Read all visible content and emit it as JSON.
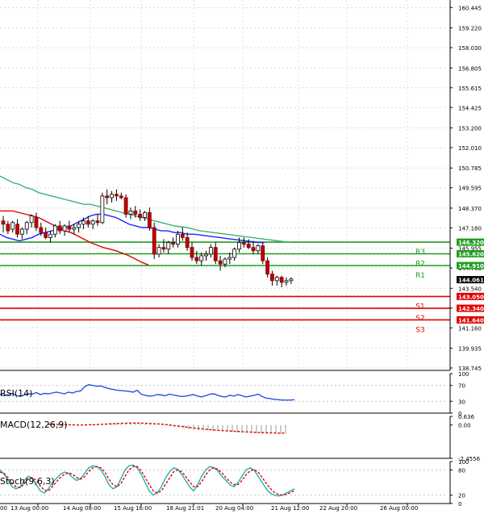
{
  "chart_data": [
    {
      "type": "candlestick",
      "x_labels": [
        "13 Aug 00:00",
        "14 Aug 08:00",
        "15 Aug 16:00",
        "18 Aug 21:01",
        "20 Aug 04:00",
        "21 Aug 12:00",
        "22 Aug 20:00",
        "26 Aug 00:00"
      ],
      "x_label_partial": "00",
      "y_ticks": [
        "160.445",
        "159.220",
        "158.030",
        "156.805",
        "155.615",
        "154.425",
        "153.200",
        "152.010",
        "150.785",
        "149.595",
        "148.370",
        "147.180",
        "145.955",
        "144.765",
        "143.540",
        "142.350",
        "141.160",
        "139.935",
        "138.745"
      ],
      "price_tags": [
        {
          "value": 146.32,
          "label": "146.320",
          "color": "#1e9e1e"
        },
        {
          "value": 145.62,
          "label": "145.620",
          "color": "#1e9e1e"
        },
        {
          "value": 144.91,
          "label": "144.910",
          "color": "#1e9e1e"
        },
        {
          "value": 144.061,
          "label": "144.061",
          "color": "#000000"
        },
        {
          "value": 143.05,
          "label": "143.050",
          "color": "#e00000"
        },
        {
          "value": 142.34,
          "label": "142.340",
          "color": "#e00000"
        },
        {
          "value": 141.64,
          "label": "141.640",
          "color": "#e00000"
        }
      ],
      "levels": [
        {
          "name": "R3",
          "value": 146.32,
          "color": "#1e9e1e"
        },
        {
          "name": "R2",
          "value": 145.62,
          "color": "#1e9e1e"
        },
        {
          "name": "R1",
          "value": 144.91,
          "color": "#1e9e1e"
        },
        {
          "name": "S1",
          "value": 143.05,
          "color": "#e00000"
        },
        {
          "name": "S2",
          "value": 142.34,
          "color": "#e00000"
        },
        {
          "name": "S3",
          "value": 141.64,
          "color": "#e00000"
        }
      ],
      "ylim": [
        138.6,
        160.9
      ],
      "grid": true,
      "candles": [
        [
          147.6,
          147.9,
          146.9,
          147.4
        ],
        [
          147.4,
          147.6,
          146.8,
          147.0
        ],
        [
          147.1,
          147.6,
          146.9,
          147.5
        ],
        [
          147.4,
          147.7,
          146.6,
          146.8
        ],
        [
          146.8,
          147.2,
          146.5,
          147.1
        ],
        [
          147.1,
          147.6,
          146.8,
          147.5
        ],
        [
          147.5,
          148.0,
          147.2,
          147.9
        ],
        [
          147.8,
          148.1,
          147.0,
          147.2
        ],
        [
          147.2,
          147.5,
          146.7,
          146.9
        ],
        [
          146.9,
          147.2,
          146.5,
          146.6
        ],
        [
          146.6,
          147.0,
          146.3,
          146.8
        ],
        [
          146.8,
          147.4,
          146.6,
          147.3
        ],
        [
          147.3,
          147.6,
          146.8,
          147.0
        ],
        [
          147.0,
          147.4,
          146.7,
          147.3
        ],
        [
          147.3,
          147.6,
          146.9,
          147.1
        ],
        [
          147.1,
          147.4,
          146.8,
          147.2
        ],
        [
          147.2,
          147.6,
          146.9,
          147.4
        ],
        [
          147.4,
          147.8,
          147.1,
          147.6
        ],
        [
          147.6,
          147.9,
          147.2,
          147.4
        ],
        [
          147.4,
          147.7,
          147.1,
          147.6
        ],
        [
          147.6,
          148.0,
          147.3,
          147.5
        ],
        [
          147.5,
          149.3,
          147.4,
          149.1
        ],
        [
          149.1,
          149.5,
          148.6,
          149.0
        ],
        [
          149.0,
          149.4,
          148.7,
          149.2
        ],
        [
          149.2,
          149.5,
          148.8,
          149.1
        ],
        [
          149.1,
          149.3,
          148.9,
          149.0
        ],
        [
          149.0,
          149.2,
          147.8,
          148.0
        ],
        [
          148.0,
          148.4,
          147.7,
          148.2
        ],
        [
          148.2,
          148.5,
          147.8,
          148.0
        ],
        [
          148.0,
          148.3,
          147.6,
          147.8
        ],
        [
          147.8,
          148.2,
          147.6,
          148.1
        ],
        [
          148.1,
          148.4,
          147.0,
          147.2
        ],
        [
          147.2,
          147.5,
          145.3,
          145.6
        ],
        [
          145.6,
          146.2,
          145.4,
          146.0
        ],
        [
          146.0,
          146.5,
          145.7,
          145.9
        ],
        [
          145.9,
          146.4,
          145.6,
          146.3
        ],
        [
          146.3,
          146.6,
          146.0,
          146.2
        ],
        [
          146.2,
          147.0,
          146.0,
          146.8
        ],
        [
          146.8,
          147.2,
          146.4,
          146.6
        ],
        [
          146.6,
          146.9,
          145.8,
          146.0
        ],
        [
          146.0,
          146.3,
          145.2,
          145.4
        ],
        [
          145.4,
          145.8,
          145.0,
          145.2
        ],
        [
          145.2,
          145.7,
          144.9,
          145.5
        ],
        [
          145.5,
          145.8,
          145.2,
          145.6
        ],
        [
          145.6,
          146.2,
          145.4,
          146.0
        ],
        [
          146.0,
          146.3,
          145.0,
          145.2
        ],
        [
          145.2,
          145.5,
          144.6,
          145.0
        ],
        [
          145.0,
          145.4,
          144.8,
          145.3
        ],
        [
          145.3,
          145.7,
          145.0,
          145.4
        ],
        [
          145.4,
          146.0,
          145.2,
          145.9
        ],
        [
          145.9,
          146.6,
          145.7,
          146.3
        ],
        [
          146.3,
          146.6,
          146.0,
          146.2
        ],
        [
          146.2,
          146.5,
          145.9,
          146.0
        ],
        [
          146.0,
          146.4,
          145.6,
          145.8
        ],
        [
          145.8,
          146.2,
          145.6,
          146.1
        ],
        [
          146.1,
          146.3,
          145.0,
          145.2
        ],
        [
          145.2,
          145.4,
          144.2,
          144.4
        ],
        [
          144.4,
          144.6,
          143.7,
          144.0
        ],
        [
          144.0,
          144.3,
          143.7,
          144.2
        ],
        [
          144.2,
          144.3,
          143.6,
          143.9
        ],
        [
          143.9,
          144.2,
          143.7,
          144.0
        ],
        [
          144.0,
          144.2,
          143.8,
          144.1
        ]
      ],
      "series": [
        {
          "color": "#3cb371",
          "values": [
            150.3,
            150.1,
            149.9,
            149.8,
            149.6,
            149.5,
            149.3,
            149.2,
            149.1,
            149.0,
            148.9,
            148.8,
            148.7,
            148.6,
            148.6,
            148.5,
            148.4,
            148.3,
            148.2,
            148.1,
            148.0,
            147.9,
            147.8,
            147.7,
            147.6,
            147.5,
            147.4,
            147.3,
            147.25,
            147.2,
            147.1,
            147.0,
            146.95,
            146.9,
            146.85,
            146.8,
            146.75,
            146.7,
            146.65,
            146.6,
            146.55,
            146.5,
            146.45,
            146.4,
            146.35,
            146.32
          ]
        },
        {
          "color": "#e00000",
          "values": [
            148.2,
            148.2,
            148.2,
            148.1,
            148.0,
            147.9,
            147.8,
            147.6,
            147.4,
            147.2,
            147.0,
            146.9,
            146.7,
            146.5,
            146.3,
            146.15,
            146.0,
            145.9,
            145.8,
            145.65,
            145.5,
            145.3,
            145.1,
            144.95
          ]
        },
        {
          "color": "#2222ff",
          "values": [
            146.8,
            146.6,
            146.5,
            146.4,
            146.5,
            146.6,
            146.8,
            146.9,
            147.0,
            147.1,
            147.2,
            147.3,
            147.5,
            147.7,
            147.9,
            148.0,
            148.0,
            147.9,
            147.8,
            147.6,
            147.4,
            147.3,
            147.2,
            147.2,
            147.1,
            147.0,
            147.0,
            146.9,
            146.9,
            146.8,
            146.8,
            146.75,
            146.7,
            146.65,
            146.6,
            146.55,
            146.5,
            146.45,
            146.4,
            146.35,
            146.3,
            146.3
          ]
        }
      ]
    },
    {
      "type": "line",
      "title": "RSI(14)",
      "y_ticks": [
        "100",
        "70",
        "30",
        "0"
      ],
      "ylim": [
        0,
        100
      ],
      "series": [
        {
          "color": "#2255dd",
          "values": [
            48,
            44,
            47,
            50,
            45,
            42,
            46,
            49,
            48,
            52,
            47,
            50,
            49,
            51,
            53,
            51,
            49,
            53,
            51,
            55,
            56,
            67,
            72,
            70,
            68,
            69,
            65,
            62,
            60,
            58,
            57,
            56,
            55,
            53,
            58,
            48,
            45,
            43,
            44,
            47,
            46,
            44,
            48,
            46,
            44,
            42,
            43,
            45,
            47,
            43,
            41,
            44,
            48,
            49,
            45,
            42,
            41,
            45,
            43,
            47,
            44,
            41,
            43,
            45,
            48,
            42,
            38,
            37,
            35,
            34,
            33,
            33,
            33,
            34
          ]
        }
      ]
    },
    {
      "type": "bar",
      "title": "MACD(12,26,9)",
      "y_ticks": [
        "0.636",
        "0.00",
        "-2.4556"
      ],
      "ylim": [
        -2.4556,
        0.636
      ],
      "values": [
        0.05,
        0.03,
        0.02,
        0.0,
        -0.02,
        -0.03,
        -0.02,
        0.0,
        0.02,
        0.04,
        0.06,
        0.08,
        0.1,
        0.12,
        0.14,
        0.15,
        0.16,
        0.16,
        0.15,
        0.14,
        0.12,
        0.08,
        0.04,
        0.0,
        -0.05,
        -0.1,
        -0.15,
        -0.2,
        -0.25,
        -0.3,
        -0.35,
        -0.38,
        -0.4,
        -0.42,
        -0.44,
        -0.46,
        -0.48,
        -0.5,
        -0.52,
        -0.55,
        -0.57,
        -0.58,
        -0.6,
        -0.61,
        -0.62,
        -0.62,
        -0.61,
        -0.62,
        -0.63,
        -0.62
      ],
      "signal": {
        "color": "#e00000",
        "values": [
          0.05,
          0.05,
          0.04,
          0.03,
          0.02,
          0.01,
          0.0,
          0.0,
          0.01,
          0.02,
          0.03,
          0.05,
          0.07,
          0.09,
          0.1,
          0.12,
          0.13,
          0.14,
          0.14,
          0.14,
          0.13,
          0.11,
          0.09,
          0.07,
          0.04,
          0.0,
          -0.04,
          -0.08,
          -0.13,
          -0.18,
          -0.22,
          -0.26,
          -0.3,
          -0.33,
          -0.36,
          -0.39,
          -0.41,
          -0.43,
          -0.45,
          -0.47,
          -0.49,
          -0.51,
          -0.53,
          -0.55,
          -0.56,
          -0.57,
          -0.58,
          -0.59,
          -0.6,
          -0.6
        ]
      }
    },
    {
      "type": "line",
      "title": "Stoch(9,6,3)",
      "y_ticks": [
        "100",
        "80",
        "20",
        "0"
      ],
      "ylim": [
        0,
        100
      ],
      "series": [
        {
          "color": "#20b2aa",
          "values": [
            80,
            70,
            55,
            40,
            35,
            40,
            55,
            65,
            60,
            45,
            30,
            25,
            35,
            50,
            60,
            70,
            75,
            72,
            62,
            55,
            60,
            72,
            85,
            90,
            88,
            80,
            65,
            45,
            35,
            40,
            60,
            80,
            90,
            92,
            85,
            70,
            50,
            30,
            20,
            25,
            40,
            60,
            75,
            85,
            82,
            70,
            55,
            40,
            30,
            45,
            65,
            80,
            88,
            86,
            78,
            65,
            55,
            45,
            40,
            50,
            65,
            80,
            85,
            80,
            65,
            50,
            35,
            25,
            20,
            18,
            20,
            25,
            30,
            35
          ]
        },
        {
          "color": "#e00000",
          "dashed": true,
          "values": [
            75,
            72,
            62,
            48,
            40,
            38,
            47,
            58,
            62,
            55,
            42,
            32,
            30,
            40,
            52,
            62,
            70,
            73,
            70,
            62,
            58,
            64,
            76,
            85,
            88,
            85,
            75,
            58,
            45,
            40,
            48,
            65,
            80,
            88,
            88,
            78,
            62,
            45,
            30,
            25,
            30,
            45,
            60,
            75,
            80,
            76,
            65,
            52,
            40,
            40,
            52,
            68,
            80,
            85,
            82,
            73,
            62,
            52,
            45,
            45,
            55,
            68,
            78,
            81,
            75,
            62,
            48,
            36,
            27,
            22,
            20,
            22,
            26,
            31
          ]
        }
      ]
    }
  ]
}
